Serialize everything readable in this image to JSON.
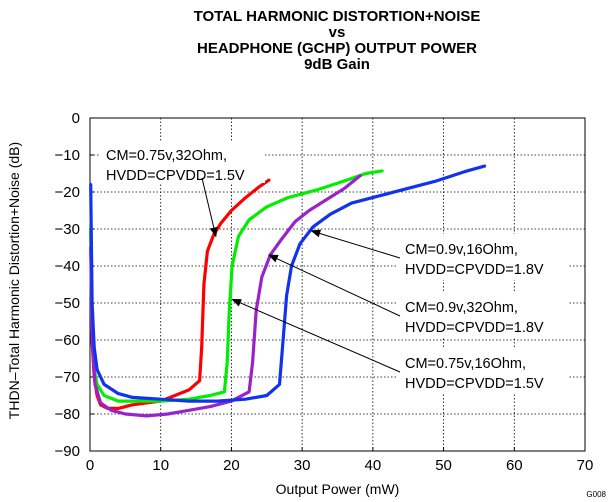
{
  "chart_data": {
    "type": "line",
    "title": [
      "TOTAL HARMONIC DISTORTION+NOISE",
      "vs",
      "HEADPHONE (GCHP) OUTPUT POWER",
      "9dB Gain"
    ],
    "xlabel": "Output Power (mW)",
    "ylabel": "THDN–Total Harmonic Distortion+Noise (dB)",
    "xlim": [
      0,
      70
    ],
    "ylim": [
      -90,
      0
    ],
    "x_ticks": [
      "0",
      "10",
      "20",
      "30",
      "40",
      "50",
      "60",
      "70"
    ],
    "y_ticks": [
      "0",
      "−10",
      "−20",
      "−30",
      "−40",
      "−50",
      "−60",
      "−70",
      "−80",
      "−90"
    ],
    "grid": true,
    "figure_code": "G008",
    "series": [
      {
        "color": "#ff0000",
        "points": [
          [
            0.1,
            -30
          ],
          [
            0.3,
            -60
          ],
          [
            0.6,
            -70
          ],
          [
            1,
            -75
          ],
          [
            1.5,
            -77.5
          ],
          [
            2.5,
            -78.5
          ],
          [
            4,
            -78.5
          ],
          [
            6,
            -77.5
          ],
          [
            8,
            -77
          ],
          [
            10,
            -76.5
          ],
          [
            12,
            -75
          ],
          [
            14,
            -73.5
          ],
          [
            15.5,
            -71
          ],
          [
            15.8,
            -62
          ],
          [
            16.1,
            -45
          ],
          [
            16.6,
            -36
          ],
          [
            17.5,
            -31.5
          ],
          [
            18.5,
            -28.5
          ],
          [
            20,
            -25
          ],
          [
            22,
            -21.5
          ],
          [
            24,
            -18.5
          ],
          [
            25.3,
            -16.8
          ]
        ]
      },
      {
        "color": "#00ee00",
        "points": [
          [
            0.1,
            -30
          ],
          [
            0.3,
            -58
          ],
          [
            0.6,
            -68
          ],
          [
            1,
            -72
          ],
          [
            2,
            -75
          ],
          [
            4,
            -76.5
          ],
          [
            6,
            -76.5
          ],
          [
            10,
            -76.5
          ],
          [
            14,
            -76
          ],
          [
            17,
            -75
          ],
          [
            19,
            -74
          ],
          [
            19.4,
            -66
          ],
          [
            19.7,
            -52
          ],
          [
            20.1,
            -40
          ],
          [
            21,
            -32
          ],
          [
            22.5,
            -27.5
          ],
          [
            25,
            -24
          ],
          [
            28,
            -21.5
          ],
          [
            32,
            -19.5
          ],
          [
            36,
            -17
          ],
          [
            39,
            -15
          ],
          [
            41.3,
            -14.3
          ]
        ]
      },
      {
        "color": "#9922cc",
        "points": [
          [
            0.1,
            -35
          ],
          [
            0.3,
            -60
          ],
          [
            0.7,
            -72
          ],
          [
            1.5,
            -77
          ],
          [
            3,
            -79
          ],
          [
            5,
            -80
          ],
          [
            8,
            -80.5
          ],
          [
            11,
            -80
          ],
          [
            14,
            -79
          ],
          [
            17,
            -78
          ],
          [
            20,
            -76.5
          ],
          [
            22.5,
            -74
          ],
          [
            23,
            -66
          ],
          [
            23.5,
            -52
          ],
          [
            24.3,
            -43
          ],
          [
            25.5,
            -37
          ],
          [
            27,
            -33
          ],
          [
            29,
            -28
          ],
          [
            31,
            -25
          ],
          [
            33.5,
            -22
          ],
          [
            36,
            -19
          ],
          [
            38.2,
            -15.6
          ]
        ]
      },
      {
        "color": "#1133ee",
        "points": [
          [
            0.1,
            -18
          ],
          [
            0.3,
            -50
          ],
          [
            0.6,
            -62
          ],
          [
            1,
            -68
          ],
          [
            2,
            -72
          ],
          [
            4,
            -74.5
          ],
          [
            6,
            -75.5
          ],
          [
            10,
            -76
          ],
          [
            14,
            -76.5
          ],
          [
            18,
            -76.5
          ],
          [
            22,
            -76
          ],
          [
            25,
            -75
          ],
          [
            26.8,
            -72
          ],
          [
            27.3,
            -60
          ],
          [
            27.8,
            -48
          ],
          [
            28.5,
            -40
          ],
          [
            29.7,
            -34
          ],
          [
            31.5,
            -29.5
          ],
          [
            34,
            -26
          ],
          [
            37,
            -23
          ],
          [
            41,
            -21
          ],
          [
            45,
            -19
          ],
          [
            49,
            -17
          ],
          [
            53,
            -14.5
          ],
          [
            55.8,
            -13
          ]
        ]
      }
    ],
    "annotations": [
      {
        "lines": [
          "CM=0.75v,32Ohm,",
          "HVDD=CPVDD=1.5V"
        ],
        "target": [
          17.8,
          -32
        ]
      },
      {
        "lines": [
          "CM=0.9v,16Ohm,",
          "HVDD=CPVDD=1.8V"
        ],
        "target": [
          31.3,
          -30.5
        ]
      },
      {
        "lines": [
          "CM=0.9v,32Ohm,",
          "HVDD=CPVDD=1.8V"
        ],
        "target": [
          25.3,
          -37
        ]
      },
      {
        "lines": [
          "CM=0.75v,16Ohm,",
          "HVDD=CPVDD=1.5V"
        ],
        "target": [
          20.1,
          -49
        ]
      }
    ]
  }
}
